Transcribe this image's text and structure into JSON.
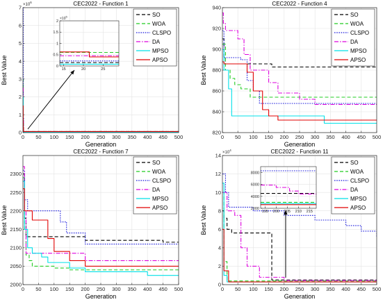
{
  "figure": {
    "colors": {
      "SO": "#000000",
      "WOA": "#22cc22",
      "CLSPO": "#1a1adc",
      "DA": "#dd00dd",
      "MPSO": "#00e0e8",
      "APSO": "#e00000"
    },
    "panels": [
      {
        "title": "CEC2022 - Function 1",
        "xlabel": "Generation",
        "ylabel": "Best Value",
        "exponent_label": "×10",
        "exponent_power": "6",
        "xlim": [
          0,
          500
        ],
        "ylim": [
          0,
          7
        ],
        "xticks": [
          0,
          50,
          100,
          150,
          200,
          250,
          300,
          350,
          400,
          450,
          500
        ],
        "yticks": [
          0,
          1,
          2,
          3,
          4,
          5,
          6,
          7
        ],
        "legend": [
          "SO",
          "WOA",
          "CLSPO",
          "DA",
          "MPSO",
          "APSO"
        ],
        "series": [
          {
            "name": "SO",
            "style": "dashed",
            "x": [
              0,
              1,
              2,
              500
            ],
            "y": [
              1.8,
              0.4,
              0.05,
              0.04
            ]
          },
          {
            "name": "WOA",
            "style": "dashed",
            "x": [
              0,
              1,
              2,
              500
            ],
            "y": [
              3.0,
              0.5,
              0.06,
              0.05
            ]
          },
          {
            "name": "CLSPO",
            "style": "dotted",
            "x": [
              0,
              1,
              2,
              500
            ],
            "y": [
              7.0,
              0.8,
              0.06,
              0.04
            ]
          },
          {
            "name": "DA",
            "style": "dashdot",
            "x": [
              0,
              1,
              2,
              500
            ],
            "y": [
              2.5,
              0.6,
              0.05,
              0.04
            ]
          },
          {
            "name": "MPSO",
            "style": "solid",
            "x": [
              0,
              1,
              2,
              500
            ],
            "y": [
              2.0,
              0.3,
              0.02,
              0.02
            ]
          },
          {
            "name": "APSO",
            "style": "solid",
            "x": [
              0,
              1,
              2,
              500
            ],
            "y": [
              1.5,
              0.3,
              0.06,
              0.05
            ]
          }
        ],
        "inset": {
          "exponent_label": "×10",
          "exponent_power": "5",
          "xlim": [
            14,
            29
          ],
          "ylim": [
            0,
            2
          ],
          "xticks": [
            15,
            20,
            25
          ],
          "yticks": [
            0,
            0.5,
            1,
            1.5,
            2
          ],
          "series": [
            {
              "name": "SO",
              "style": "dashed",
              "x": [
                14,
                29
              ],
              "y": [
                0.15,
                0.15
              ]
            },
            {
              "name": "WOA",
              "style": "dashed",
              "x": [
                14,
                29
              ],
              "y": [
                0.6,
                0.6
              ]
            },
            {
              "name": "CLSPO",
              "style": "dotted",
              "x": [
                14,
                29
              ],
              "y": [
                0.22,
                0.22
              ]
            },
            {
              "name": "DA",
              "style": "dashdot",
              "x": [
                14,
                29
              ],
              "y": [
                0.45,
                0.45
              ]
            },
            {
              "name": "MPSO",
              "style": "solid",
              "x": [
                14,
                29
              ],
              "y": [
                0.08,
                0.08
              ]
            },
            {
              "name": "APSO",
              "style": "solid",
              "x": [
                14,
                20.5,
                21.5,
                29
              ],
              "y": [
                0.62,
                0.62,
                0.4,
                0.4
              ]
            }
          ]
        }
      },
      {
        "title": "CEC2022 - Function 4",
        "xlabel": "Generation",
        "ylabel": "Best Value",
        "xlim": [
          0,
          500
        ],
        "ylim": [
          820,
          940
        ],
        "xticks": [
          0,
          50,
          100,
          150,
          200,
          250,
          300,
          350,
          400,
          450,
          500
        ],
        "yticks": [
          820,
          840,
          860,
          880,
          900,
          920,
          940
        ],
        "legend": [
          "SO",
          "WOA",
          "CLSPO",
          "DA",
          "MPSO",
          "APSO"
        ],
        "series": [
          {
            "name": "SO",
            "style": "dashed",
            "x": [
              0,
              5,
              10,
              150,
              160,
              500
            ],
            "y": [
              910,
              892,
              886,
              886,
              883,
              883
            ]
          },
          {
            "name": "WOA",
            "style": "dashed",
            "x": [
              0,
              10,
              25,
              40,
              60,
              90,
              500
            ],
            "y": [
              905,
              880,
              872,
              866,
              862,
              854,
              854
            ]
          },
          {
            "name": "CLSPO",
            "style": "dotted",
            "x": [
              0,
              5,
              60,
              80,
              100,
              120,
              500
            ],
            "y": [
              918,
              892,
              890,
              870,
              860,
              848,
              848
            ]
          },
          {
            "name": "DA",
            "style": "dashdot",
            "x": [
              0,
              3,
              10,
              50,
              70,
              90,
              150,
              180,
              250,
              300,
              500
            ],
            "y": [
              935,
              925,
              918,
              910,
              895,
              880,
              868,
              858,
              852,
              847,
              847
            ]
          },
          {
            "name": "MPSO",
            "style": "solid",
            "x": [
              0,
              5,
              20,
              30,
              320,
              330,
              500
            ],
            "y": [
              900,
              880,
              862,
              836,
              836,
              829,
              829
            ]
          },
          {
            "name": "APSO",
            "style": "solid",
            "x": [
              0,
              5,
              60,
              80,
              100,
              130,
              150,
              180,
              300,
              500
            ],
            "y": [
              888,
              886,
              886,
              878,
              860,
              842,
              836,
              832,
              832,
              832
            ]
          }
        ]
      },
      {
        "title": "CEC2022 - Function 7",
        "xlabel": "Generation",
        "ylabel": "Best Value",
        "xlim": [
          0,
          500
        ],
        "ylim": [
          2000,
          2350
        ],
        "xticks": [
          0,
          50,
          100,
          150,
          200,
          250,
          300,
          350,
          400,
          450,
          500
        ],
        "yticks": [
          2000,
          2050,
          2100,
          2150,
          2200,
          2250,
          2300
        ],
        "legend": [
          "SO",
          "WOA",
          "CLSPO",
          "DA",
          "MPSO",
          "APSO"
        ],
        "series": [
          {
            "name": "SO",
            "style": "dashed",
            "x": [
              0,
              5,
              10,
              150,
              200,
              450,
              500
            ],
            "y": [
              2300,
              2180,
              2130,
              2130,
              2120,
              2115,
              2115
            ]
          },
          {
            "name": "WOA",
            "style": "dashed",
            "x": [
              0,
              5,
              10,
              20,
              30,
              100,
              150,
              500
            ],
            "y": [
              2290,
              2150,
              2080,
              2065,
              2050,
              2045,
              2040,
              2040
            ]
          },
          {
            "name": "CLSPO",
            "style": "dotted",
            "x": [
              0,
              5,
              15,
              100,
              120,
              140,
              200,
              500
            ],
            "y": [
              2310,
              2230,
              2200,
              2200,
              2170,
              2140,
              2110,
              2110
            ]
          },
          {
            "name": "DA",
            "style": "dashdot",
            "x": [
              0,
              5,
              10,
              150,
              200,
              500
            ],
            "y": [
              2320,
              2200,
              2085,
              2085,
              2065,
              2065
            ]
          },
          {
            "name": "MPSO",
            "style": "solid",
            "x": [
              0,
              5,
              15,
              30,
              60,
              80,
              150,
              200,
              400,
              500
            ],
            "y": [
              2280,
              2150,
              2100,
              2085,
              2075,
              2060,
              2045,
              2035,
              2025,
              2025
            ]
          },
          {
            "name": "APSO",
            "style": "solid",
            "x": [
              0,
              5,
              30,
              80,
              100,
              150,
              200,
              500
            ],
            "y": [
              2260,
              2200,
              2175,
              2125,
              2090,
              2065,
              2050,
              2050
            ]
          }
        ]
      },
      {
        "title": "CEC2022 - Function 11",
        "xlabel": "Generation",
        "ylabel": "Best Value",
        "exponent_label": "×10",
        "exponent_power": "4",
        "xlim": [
          0,
          500
        ],
        "ylim": [
          0,
          14
        ],
        "xticks": [
          0,
          50,
          100,
          150,
          200,
          250,
          300,
          350,
          400,
          450,
          500
        ],
        "yticks": [
          0,
          2,
          4,
          6,
          8,
          10,
          12,
          14
        ],
        "legend": [
          "SO",
          "WOA",
          "CLSPO",
          "DA",
          "MPSO",
          "APSO"
        ],
        "series": [
          {
            "name": "SO",
            "style": "dashed",
            "x": [
              0,
              5,
              15,
              30,
              150,
              160,
              500
            ],
            "y": [
              8,
              7.2,
              6.0,
              5.6,
              5.6,
              0.5,
              0.45
            ]
          },
          {
            "name": "WOA",
            "style": "dashed",
            "x": [
              0,
              5,
              15,
              500
            ],
            "y": [
              10,
              2.5,
              0.4,
              0.3
            ]
          },
          {
            "name": "CLSPO",
            "style": "dotted",
            "x": [
              0,
              10,
              20,
              100,
              200,
              300,
              400,
              450,
              500
            ],
            "y": [
              12,
              10,
              8.4,
              8.0,
              7.5,
              7.0,
              6.4,
              5.8,
              5.2
            ]
          },
          {
            "name": "DA",
            "style": "dashdot",
            "x": [
              0,
              15,
              40,
              60,
              80,
              120,
              200,
              500
            ],
            "y": [
              10,
              8.0,
              7.5,
              4.0,
              2.0,
              0.8,
              0.45,
              0.4
            ]
          },
          {
            "name": "MPSO",
            "style": "solid",
            "x": [
              0,
              5,
              15,
              500
            ],
            "y": [
              11,
              1.0,
              0.3,
              0.3
            ]
          },
          {
            "name": "APSO",
            "style": "solid",
            "x": [
              0,
              5,
              20,
              500
            ],
            "y": [
              6,
              1.5,
              0.3,
              0.28
            ]
          }
        ],
        "inset": {
          "xlim": [
            193,
            218
          ],
          "ylim": [
            2000,
            9000
          ],
          "xticks": [
            195,
            200,
            205,
            210,
            215
          ],
          "yticks": [
            2000,
            4000,
            6000,
            8000
          ],
          "series": [
            {
              "name": "SO",
              "style": "dashed",
              "x": [
                193,
                218
              ],
              "y": [
                4500,
                4500
              ]
            },
            {
              "name": "WOA",
              "style": "dashed",
              "x": [
                193,
                218
              ],
              "y": [
                3000,
                3000
              ]
            },
            {
              "name": "CLSPO",
              "style": "dotted",
              "x": [
                193,
                218
              ],
              "y": [
                8300,
                8300
              ]
            },
            {
              "name": "DA",
              "style": "dashdot",
              "x": [
                193,
                197,
                200,
                206,
                210,
                218
              ],
              "y": [
                5900,
                5900,
                5500,
                4900,
                4400,
                4400
              ]
            },
            {
              "name": "MPSO",
              "style": "solid",
              "x": [
                193,
                218
              ],
              "y": [
                2800,
                2800
              ]
            },
            {
              "name": "APSO",
              "style": "solid",
              "x": [
                193,
                218
              ],
              "y": [
                2600,
                2600
              ]
            }
          ]
        }
      }
    ]
  }
}
